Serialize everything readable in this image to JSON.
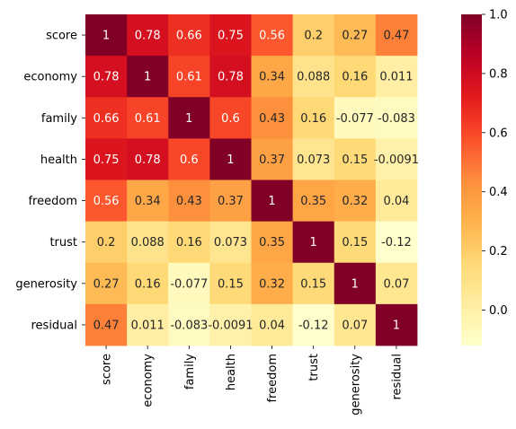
{
  "chart_data": {
    "type": "heatmap",
    "title": "",
    "xlabel": "",
    "ylabel": "",
    "rows": [
      "score",
      "economy",
      "family",
      "health",
      "freedom",
      "trust",
      "generosity",
      "residual"
    ],
    "columns": [
      "score",
      "economy",
      "family",
      "health",
      "freedom",
      "trust",
      "generosity",
      "residual"
    ],
    "values": [
      [
        1,
        0.78,
        0.66,
        0.75,
        0.56,
        0.2,
        0.27,
        0.47
      ],
      [
        0.78,
        1,
        0.61,
        0.78,
        0.34,
        0.088,
        0.16,
        0.011
      ],
      [
        0.66,
        0.61,
        1,
        0.6,
        0.43,
        0.16,
        -0.077,
        -0.083
      ],
      [
        0.75,
        0.78,
        0.6,
        1,
        0.37,
        0.073,
        0.15,
        -0.0091
      ],
      [
        0.56,
        0.34,
        0.43,
        0.37,
        1,
        0.35,
        0.32,
        0.04
      ],
      [
        0.2,
        0.088,
        0.16,
        0.073,
        0.35,
        1,
        0.15,
        -0.12
      ],
      [
        0.27,
        0.16,
        -0.077,
        0.15,
        0.32,
        0.15,
        1,
        0.07
      ],
      [
        0.47,
        0.011,
        -0.083,
        -0.0091,
        0.04,
        -0.12,
        0.07,
        1
      ]
    ],
    "annotations": [
      [
        "1",
        "0.78",
        "0.66",
        "0.75",
        "0.56",
        "0.2",
        "0.27",
        "0.47"
      ],
      [
        "0.78",
        "1",
        "0.61",
        "0.78",
        "0.34",
        "0.088",
        "0.16",
        "0.011"
      ],
      [
        "0.66",
        "0.61",
        "1",
        "0.6",
        "0.43",
        "0.16",
        "-0.077",
        "-0.083"
      ],
      [
        "0.75",
        "0.78",
        "0.6",
        "1",
        "0.37",
        "0.073",
        "0.15",
        "-0.0091"
      ],
      [
        "0.56",
        "0.34",
        "0.43",
        "0.37",
        "1",
        "0.35",
        "0.32",
        "0.04"
      ],
      [
        "0.2",
        "0.088",
        "0.16",
        "0.073",
        "0.35",
        "1",
        "0.15",
        "-0.12"
      ],
      [
        "0.27",
        "0.16",
        "-0.077",
        "0.15",
        "0.32",
        "0.15",
        "1",
        "0.07"
      ],
      [
        "0.47",
        "0.011",
        "-0.083",
        "-0.0091",
        "0.04",
        "-0.12",
        "0.07",
        "1"
      ]
    ],
    "colormap": "YlOrRd",
    "colorbar": {
      "vmin": -0.12,
      "vmax": 1,
      "ticks": [
        -0.0,
        0.2,
        0.4,
        0.6,
        0.8,
        1.0
      ],
      "tick_labels": [
        "0.0",
        "0.2",
        "0.4",
        "0.6",
        "0.8",
        "1.0"
      ]
    },
    "grid": false,
    "legend": "colorbar-right"
  }
}
